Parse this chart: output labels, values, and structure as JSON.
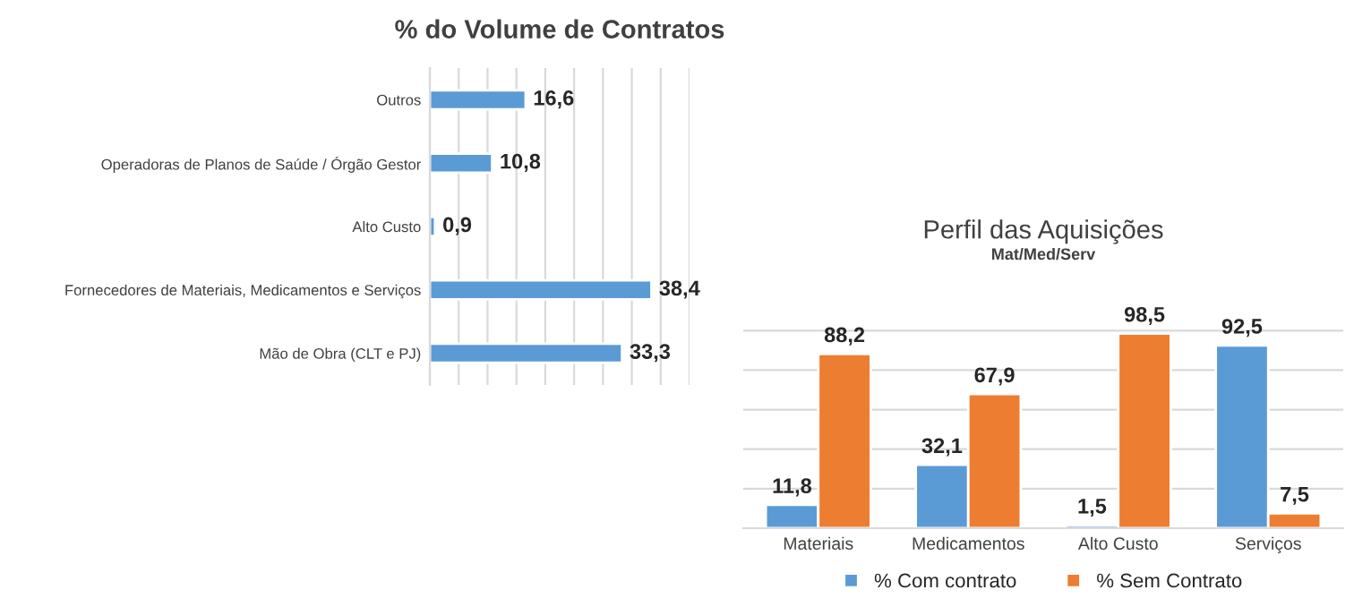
{
  "chart_data": [
    {
      "type": "bar",
      "orientation": "horizontal",
      "title": "% do Volume de Contratos",
      "categories": [
        "Outros",
        "Operadoras de Planos de Saúde / Órgão Gestor",
        "Alto Custo",
        "Fornecedores de Materiais, Medicamentos e Serviços",
        "Mão de Obra (CLT e PJ)"
      ],
      "values": [
        16.6,
        10.8,
        0.9,
        38.4,
        33.3
      ],
      "value_labels": [
        "16,6",
        "10,8",
        "0,9",
        "38,4",
        "33,3"
      ],
      "color": "#5b9bd5",
      "grid": "x",
      "xlim": [
        0,
        45
      ],
      "xticks": [
        {
          "value": 0,
          "label": null
        },
        {
          "value": 5,
          "label": null
        },
        {
          "value": 10,
          "label": null
        },
        {
          "value": 15,
          "label": null
        },
        {
          "value": 20,
          "label": null
        },
        {
          "value": 25,
          "label": null
        },
        {
          "value": 30,
          "label": null
        },
        {
          "value": 35,
          "label": null
        },
        {
          "value": 40,
          "label": null
        },
        {
          "value": 45,
          "label": null
        }
      ],
      "tick_labels": "y",
      "legend": false
    },
    {
      "type": "bar",
      "title": "Perfil das Aquisições",
      "subtitle": "Mat/Med/Serv",
      "categories": [
        "Materiais",
        "Medicamentos",
        "Alto Custo",
        "Serviços"
      ],
      "series": [
        {
          "name": "% Com contrato",
          "color": "#5b9bd5",
          "values": [
            11.8,
            32.1,
            1.5,
            92.5
          ],
          "value_labels": [
            "11,8",
            "32,1",
            "1,5",
            "92,5"
          ]
        },
        {
          "name": "% Sem Contrato",
          "color": "#ed7d31",
          "values": [
            88.2,
            67.9,
            98.5,
            7.5
          ],
          "value_labels": [
            "88,2",
            "67,9",
            "98,5",
            "7,5"
          ]
        }
      ],
      "grid": "y",
      "tick_labels": "x",
      "legend": "bottom"
    }
  ]
}
